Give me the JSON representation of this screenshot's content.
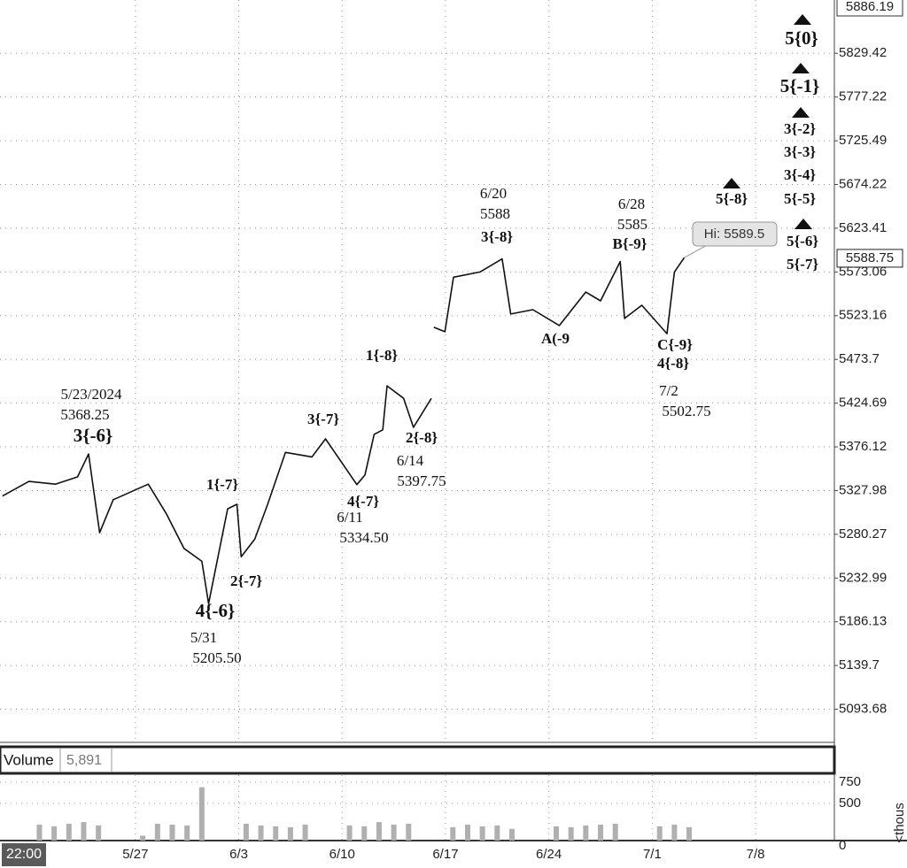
{
  "chart_data": [
    {
      "type": "line",
      "log_y": true,
      "grid": true,
      "color": "#111111",
      "ylim": [
        5060,
        5886.19
      ],
      "yticks": [
        5093.68,
        5139.7,
        5186.13,
        5232.99,
        5280.27,
        5327.98,
        5376.12,
        5424.69,
        5473.7,
        5523.16,
        5573.06,
        5623.41,
        5674.22,
        5725.49,
        5777.22,
        5829.42
      ],
      "xlim": [
        "2024-05-17T20:00",
        "2024-07-13T08:00"
      ],
      "xticks": [
        {
          "value": "2024-05-27T00:00",
          "label": "5/27"
        },
        {
          "value": "2024-06-03T00:00",
          "label": "6/3"
        },
        {
          "value": "2024-06-10T00:00",
          "label": "6/10"
        },
        {
          "value": "2024-06-17T00:00",
          "label": "6/17"
        },
        {
          "value": "2024-06-24T00:00",
          "label": "6/24"
        },
        {
          "value": "2024-07-01T00:00",
          "label": "7/1"
        },
        {
          "value": "2024-07-08T00:00",
          "label": "7/8"
        }
      ],
      "start_label": "22:00",
      "x": [
        "2024-05-18T00:00",
        "2024-05-19T19:00",
        "2024-05-21T14:00",
        "2024-05-23T02:00",
        "2024-05-23T20:00",
        "2024-05-24T14:00",
        "2024-05-25T12:00",
        "2024-05-27T21:00",
        "2024-05-29T02:00",
        "2024-05-30T07:00",
        "2024-05-31T12:00",
        "2024-05-31T23:00",
        "2024-06-02T06:00",
        "2024-06-02T21:00",
        "2024-06-03T04:00",
        "2024-06-04T02:00",
        "2024-06-04T23:00",
        "2024-06-06T04:00",
        "2024-06-07T23:00",
        "2024-06-08T21:00",
        "2024-06-11T00:00",
        "2024-06-11T13:00",
        "2024-06-12T04:00",
        "2024-06-12T18:00",
        "2024-06-13T01:00",
        "2024-06-14T04:00",
        "2024-06-14T20:00",
        "2024-06-16T01:00",
        "2024-06-16T03:00",
        "2024-06-16T05:00",
        "2024-06-16T23:00",
        "2024-06-17T13:00",
        "2024-06-19T08:00",
        "2024-06-20T20:00",
        "2024-06-21T10:00",
        "2024-06-22T22:00",
        "2024-06-24T17:00",
        "2024-06-26T12:00",
        "2024-06-27T12:00",
        "2024-06-28T20:00",
        "2024-06-29T03:00",
        "2024-06-30T07:00",
        "2024-07-02T00:00",
        "2024-07-02T12:00",
        "2024-07-03T04:00"
      ],
      "values": [
        5322,
        5338,
        5335,
        5343,
        5368.25,
        5282,
        5318,
        5335,
        5303,
        5265,
        5251,
        5205.5,
        5308,
        5313,
        5256,
        5275,
        5313,
        5370,
        5365,
        5385,
        5334.5,
        5345,
        5390,
        5395,
        5444,
        5430,
        5397.75,
        5430,
        null,
        5510,
        5505,
        5567,
        5573,
        5588,
        5525,
        5530,
        5512,
        5550,
        5540,
        5585,
        5520,
        5535,
        5502.75,
        5573,
        5589.5
      ],
      "hi_label": "Hi: 5589.5",
      "last_price": 5588.75,
      "annotations": [
        {
          "text": "5/23/2024",
          "weight": "normal"
        },
        {
          "text": "5368.25",
          "weight": "normal"
        },
        {
          "text": "3{-6}",
          "weight": "bold"
        },
        {
          "text": "1{-7}",
          "weight": "bold"
        },
        {
          "text": "2{-7}",
          "weight": "bold"
        },
        {
          "text": "4{-6}",
          "weight": "bold"
        },
        {
          "text": "5/31",
          "weight": "normal"
        },
        {
          "text": "5205.50",
          "weight": "normal"
        },
        {
          "text": "3{-7}",
          "weight": "bold"
        },
        {
          "text": "4{-7}",
          "weight": "bold"
        },
        {
          "text": "6/11",
          "weight": "normal"
        },
        {
          "text": "5334.50",
          "weight": "normal"
        },
        {
          "text": "1{-8}",
          "weight": "bold"
        },
        {
          "text": "2{-8}",
          "weight": "bold"
        },
        {
          "text": "6/14",
          "weight": "normal"
        },
        {
          "text": "5397.75",
          "weight": "normal"
        },
        {
          "text": "6/20",
          "weight": "normal"
        },
        {
          "text": "5588",
          "weight": "normal"
        },
        {
          "text": "3{-8}",
          "weight": "bold"
        },
        {
          "text": "6/28",
          "weight": "normal"
        },
        {
          "text": "5585",
          "weight": "normal"
        },
        {
          "text": "B{-9}",
          "weight": "bold"
        },
        {
          "text": "A(-9",
          "weight": "bold"
        },
        {
          "text": "C{-9}",
          "weight": "bold"
        },
        {
          "text": "4{-8}",
          "weight": "bold"
        },
        {
          "text": "7/2",
          "weight": "normal"
        },
        {
          "text": "5502.75",
          "weight": "normal"
        },
        {
          "text": "5{0}",
          "weight": "bold"
        },
        {
          "text": "5{-1}",
          "weight": "bold"
        },
        {
          "text": "3{-2}",
          "weight": "bold"
        },
        {
          "text": "3{-3}",
          "weight": "bold"
        },
        {
          "text": "3{-4}",
          "weight": "bold"
        },
        {
          "text": "5{-5}",
          "weight": "bold"
        },
        {
          "text": "5{-6}",
          "weight": "bold"
        },
        {
          "text": "5{-7}",
          "weight": "bold"
        },
        {
          "text": "5{-8}",
          "weight": "bold"
        }
      ]
    },
    {
      "type": "bar",
      "title": "Volume",
      "current": "5,891",
      "y_label": "<thous",
      "color": "#b0b0b0",
      "ylim": [
        0,
        833
      ],
      "yticks": [
        0,
        500,
        750
      ],
      "x": [
        "2024-05-18T12:00",
        "2024-05-19T12:00",
        "2024-05-20T12:00",
        "2024-05-21T12:00",
        "2024-05-22T12:00",
        "2024-05-23T12:00",
        "2024-05-24T12:00",
        "2024-05-25T12:00",
        "2024-05-26T12:00",
        "2024-05-27T12:00",
        "2024-05-28T12:00",
        "2024-05-29T12:00",
        "2024-05-30T12:00",
        "2024-05-31T12:00",
        "2024-06-01T12:00",
        "2024-06-02T12:00",
        "2024-06-03T12:00",
        "2024-06-04T12:00",
        "2024-06-05T12:00",
        "2024-06-06T12:00",
        "2024-06-07T12:00",
        "2024-06-08T12:00",
        "2024-06-09T12:00",
        "2024-06-10T12:00",
        "2024-06-11T12:00",
        "2024-06-12T12:00",
        "2024-06-13T12:00",
        "2024-06-14T12:00",
        "2024-06-15T12:00",
        "2024-06-16T12:00",
        "2024-06-17T12:00",
        "2024-06-18T12:00",
        "2024-06-19T12:00",
        "2024-06-20T12:00",
        "2024-06-21T12:00",
        "2024-06-22T12:00",
        "2024-06-23T12:00",
        "2024-06-24T12:00",
        "2024-06-25T12:00",
        "2024-06-26T12:00",
        "2024-06-27T12:00",
        "2024-06-28T12:00",
        "2024-06-29T12:00",
        "2024-06-30T12:00",
        "2024-07-01T12:00",
        "2024-07-02T12:00",
        "2024-07-03T12:00"
      ],
      "values": [
        20,
        20,
        250,
        230,
        260,
        280,
        240,
        20,
        20,
        120,
        260,
        250,
        240,
        690,
        20,
        20,
        260,
        240,
        230,
        220,
        250,
        20,
        20,
        240,
        230,
        280,
        250,
        260,
        20,
        20,
        220,
        250,
        230,
        240,
        200,
        20,
        20,
        230,
        220,
        240,
        250,
        260,
        20,
        20,
        230,
        250,
        220
      ]
    }
  ]
}
